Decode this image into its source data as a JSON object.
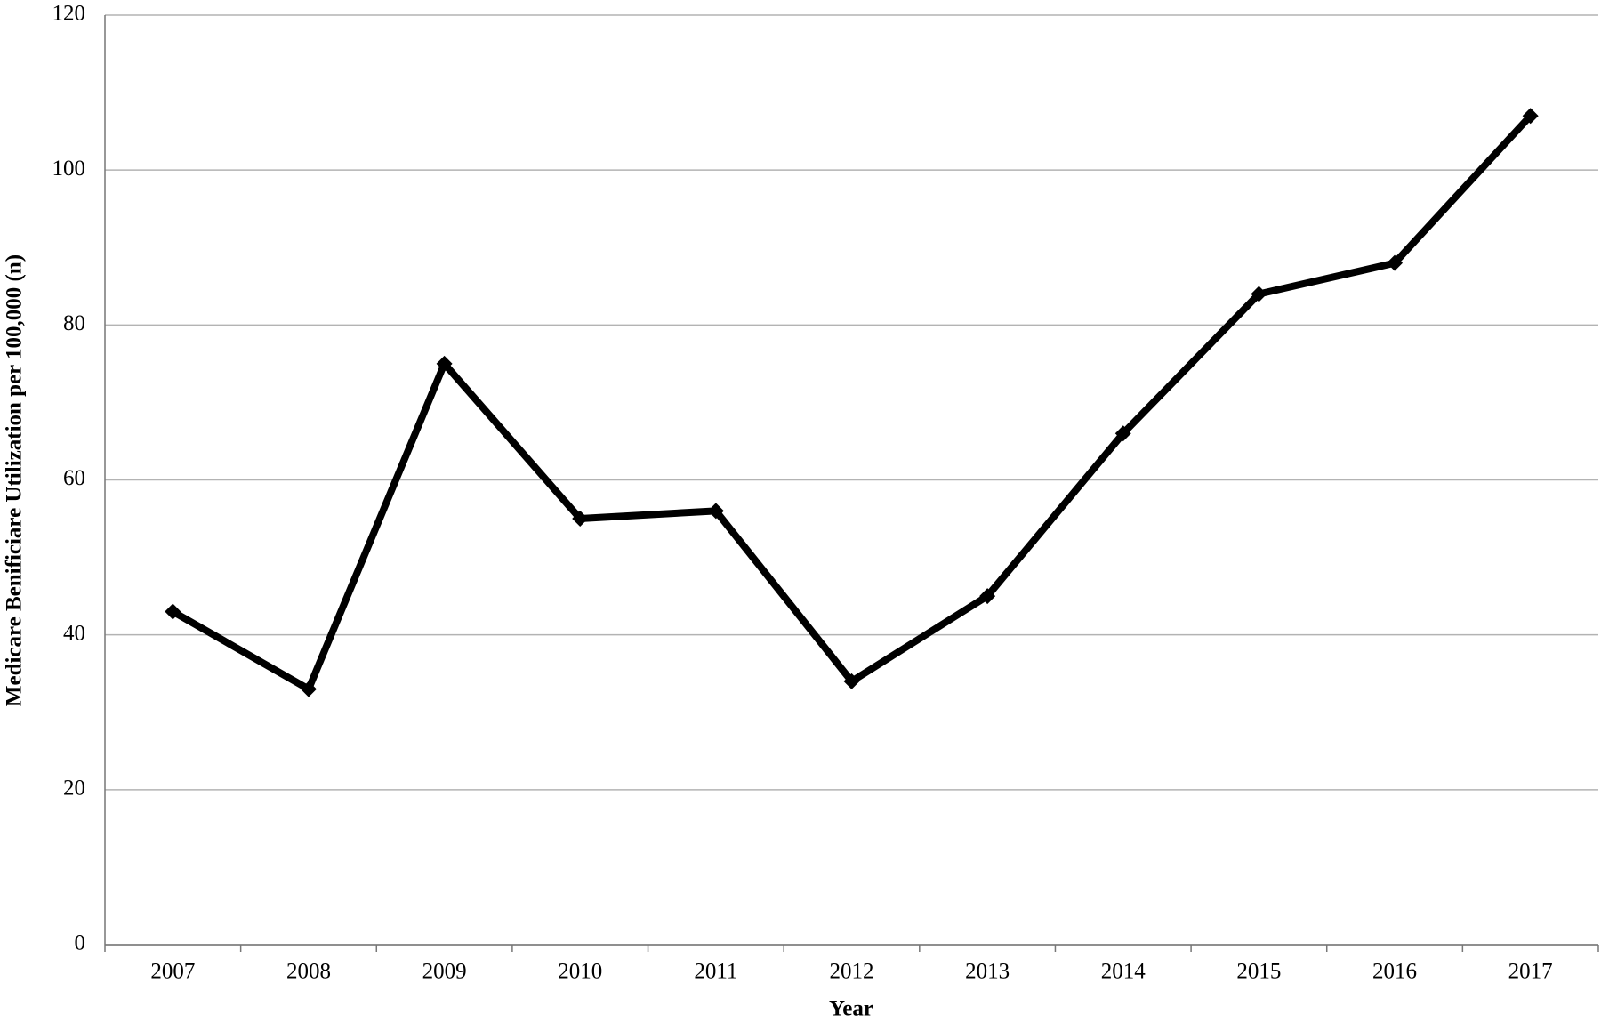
{
  "chart_data": {
    "type": "line",
    "x_label": "Year",
    "y_label": "Medicare Benificiare Utilization per 100,000 (n)",
    "categories": [
      "2007",
      "2008",
      "2009",
      "2010",
      "2011",
      "2012",
      "2013",
      "2014",
      "2015",
      "2016",
      "2017"
    ],
    "values": [
      43,
      33,
      75,
      55,
      56,
      34,
      45,
      66,
      84,
      88,
      107
    ],
    "color": "#000000",
    "ylim": [
      0,
      120
    ],
    "yticks": [
      0,
      20,
      40,
      60,
      80,
      100,
      120
    ],
    "grid": true
  }
}
